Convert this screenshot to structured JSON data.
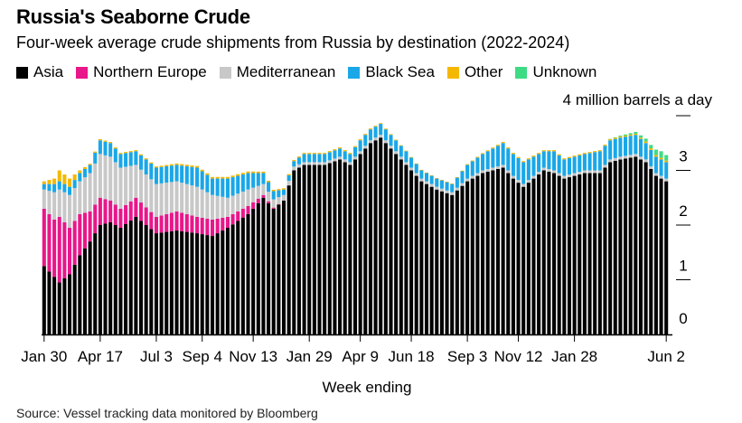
{
  "title": "Russia's Seaborne Crude",
  "subtitle": "Four-week average crude shipments from Russia by destination (2022-2024)",
  "source": "Source: Vessel tracking data monitored by Bloomberg",
  "colors": {
    "Asia": "#000000",
    "Northern Europe": "#e8178a",
    "Mediterranean": "#c8c8c8",
    "Black Sea": "#1aa7e8",
    "Other": "#f5b800",
    "Unknown": "#3ddc84"
  },
  "chart_data": {
    "type": "bar",
    "stacked": true,
    "title": "Russia's Seaborne Crude",
    "ylabel": "4 million barrels a day",
    "xlabel": "Week ending",
    "ylim": [
      0,
      4
    ],
    "yticks": [
      "0",
      "1",
      "2",
      "3"
    ],
    "xtick_labels": [
      {
        "label": "Jan 30",
        "index": 0
      },
      {
        "label": "Apr 17",
        "index": 11
      },
      {
        "label": "Jul 3",
        "index": 22
      },
      {
        "label": "Sep 4",
        "index": 31
      },
      {
        "label": "Nov 13",
        "index": 41
      },
      {
        "label": "Jan 29",
        "index": 52
      },
      {
        "label": "Apr 9",
        "index": 62
      },
      {
        "label": "Jun 18",
        "index": 72
      },
      {
        "label": "Sep 3",
        "index": 83
      },
      {
        "label": "Nov 12",
        "index": 93
      },
      {
        "label": "Jan 28",
        "index": 104
      },
      {
        "label": "Jun 2",
        "index": 122
      }
    ],
    "n_weeks": 123,
    "series_names": [
      "Asia",
      "Northern Europe",
      "Mediterranean",
      "Black Sea",
      "Other",
      "Unknown"
    ],
    "anchors": {
      "Asia": [
        [
          0,
          1.25
        ],
        [
          2,
          1.05
        ],
        [
          3,
          0.95
        ],
        [
          5,
          1.1
        ],
        [
          7,
          1.45
        ],
        [
          9,
          1.7
        ],
        [
          11,
          2.0
        ],
        [
          13,
          2.05
        ],
        [
          15,
          1.95
        ],
        [
          18,
          2.15
        ],
        [
          22,
          1.85
        ],
        [
          26,
          1.9
        ],
        [
          30,
          1.85
        ],
        [
          33,
          1.8
        ],
        [
          36,
          1.95
        ],
        [
          40,
          2.2
        ],
        [
          43,
          2.5
        ],
        [
          45,
          2.3
        ],
        [
          47,
          2.45
        ],
        [
          49,
          3.0
        ],
        [
          51,
          3.1
        ],
        [
          55,
          3.1
        ],
        [
          58,
          3.2
        ],
        [
          60,
          3.1
        ],
        [
          62,
          3.3
        ],
        [
          64,
          3.5
        ],
        [
          66,
          3.6
        ],
        [
          68,
          3.4
        ],
        [
          71,
          3.1
        ],
        [
          74,
          2.8
        ],
        [
          77,
          2.65
        ],
        [
          80,
          2.55
        ],
        [
          83,
          2.8
        ],
        [
          86,
          2.95
        ],
        [
          88,
          3.0
        ],
        [
          90,
          3.05
        ],
        [
          92,
          2.85
        ],
        [
          94,
          2.7
        ],
        [
          96,
          2.85
        ],
        [
          98,
          3.0
        ],
        [
          100,
          2.95
        ],
        [
          102,
          2.85
        ],
        [
          104,
          2.9
        ],
        [
          106,
          2.95
        ],
        [
          109,
          2.95
        ],
        [
          111,
          3.15
        ],
        [
          113,
          3.2
        ],
        [
          116,
          3.25
        ],
        [
          118,
          3.15
        ],
        [
          120,
          2.9
        ],
        [
          122,
          2.8
        ]
      ],
      "Northern Europe": [
        [
          0,
          1.05
        ],
        [
          2,
          1.05
        ],
        [
          3,
          1.2
        ],
        [
          5,
          0.85
        ],
        [
          7,
          0.75
        ],
        [
          9,
          0.55
        ],
        [
          11,
          0.5
        ],
        [
          13,
          0.4
        ],
        [
          15,
          0.35
        ],
        [
          18,
          0.35
        ],
        [
          22,
          0.3
        ],
        [
          26,
          0.35
        ],
        [
          30,
          0.3
        ],
        [
          33,
          0.3
        ],
        [
          36,
          0.2
        ],
        [
          40,
          0.15
        ],
        [
          43,
          0.05
        ],
        [
          45,
          0.02
        ],
        [
          47,
          0.0
        ],
        [
          122,
          0.0
        ]
      ],
      "Mediterranean": [
        [
          0,
          0.35
        ],
        [
          2,
          0.5
        ],
        [
          3,
          0.5
        ],
        [
          5,
          0.6
        ],
        [
          7,
          0.6
        ],
        [
          9,
          0.7
        ],
        [
          11,
          0.8
        ],
        [
          13,
          0.8
        ],
        [
          15,
          0.75
        ],
        [
          18,
          0.6
        ],
        [
          22,
          0.6
        ],
        [
          26,
          0.55
        ],
        [
          30,
          0.55
        ],
        [
          33,
          0.45
        ],
        [
          36,
          0.35
        ],
        [
          40,
          0.3
        ],
        [
          43,
          0.2
        ],
        [
          45,
          0.15
        ],
        [
          47,
          0.1
        ],
        [
          49,
          0.07
        ],
        [
          51,
          0.05
        ],
        [
          55,
          0.05
        ],
        [
          122,
          0.05
        ]
      ],
      "Black Sea": [
        [
          0,
          0.1
        ],
        [
          2,
          0.15
        ],
        [
          5,
          0.15
        ],
        [
          7,
          0.15
        ],
        [
          9,
          0.15
        ],
        [
          11,
          0.25
        ],
        [
          13,
          0.25
        ],
        [
          15,
          0.25
        ],
        [
          18,
          0.25
        ],
        [
          22,
          0.3
        ],
        [
          26,
          0.3
        ],
        [
          30,
          0.35
        ],
        [
          33,
          0.3
        ],
        [
          36,
          0.35
        ],
        [
          40,
          0.3
        ],
        [
          43,
          0.2
        ],
        [
          45,
          0.15
        ],
        [
          47,
          0.1
        ],
        [
          49,
          0.1
        ],
        [
          51,
          0.15
        ],
        [
          55,
          0.15
        ],
        [
          58,
          0.15
        ],
        [
          60,
          0.15
        ],
        [
          62,
          0.2
        ],
        [
          64,
          0.2
        ],
        [
          66,
          0.2
        ],
        [
          68,
          0.2
        ],
        [
          71,
          0.2
        ],
        [
          74,
          0.15
        ],
        [
          77,
          0.15
        ],
        [
          80,
          0.15
        ],
        [
          83,
          0.25
        ],
        [
          86,
          0.3
        ],
        [
          88,
          0.35
        ],
        [
          90,
          0.4
        ],
        [
          92,
          0.4
        ],
        [
          94,
          0.4
        ],
        [
          96,
          0.35
        ],
        [
          98,
          0.3
        ],
        [
          100,
          0.35
        ],
        [
          102,
          0.3
        ],
        [
          104,
          0.3
        ],
        [
          106,
          0.3
        ],
        [
          109,
          0.35
        ],
        [
          111,
          0.35
        ],
        [
          113,
          0.35
        ],
        [
          116,
          0.35
        ],
        [
          118,
          0.3
        ],
        [
          120,
          0.3
        ],
        [
          122,
          0.3
        ]
      ],
      "Other": [
        [
          0,
          0.05
        ],
        [
          2,
          0.1
        ],
        [
          3,
          0.2
        ],
        [
          5,
          0.15
        ],
        [
          7,
          0.05
        ],
        [
          9,
          0.02
        ],
        [
          11,
          0.02
        ],
        [
          20,
          0.02
        ],
        [
          30,
          0.03
        ],
        [
          40,
          0.03
        ],
        [
          50,
          0.02
        ],
        [
          60,
          0.02
        ],
        [
          70,
          0.01
        ],
        [
          80,
          0.01
        ],
        [
          90,
          0.02
        ],
        [
          100,
          0.02
        ],
        [
          110,
          0.02
        ],
        [
          116,
          0.02
        ],
        [
          118,
          0.03
        ],
        [
          120,
          0.03
        ],
        [
          122,
          0.03
        ]
      ],
      "Unknown": [
        [
          0,
          0.0
        ],
        [
          110,
          0.0
        ],
        [
          114,
          0.02
        ],
        [
          117,
          0.04
        ],
        [
          119,
          0.06
        ],
        [
          120,
          0.1
        ],
        [
          121,
          0.12
        ],
        [
          122,
          0.1
        ]
      ]
    }
  }
}
